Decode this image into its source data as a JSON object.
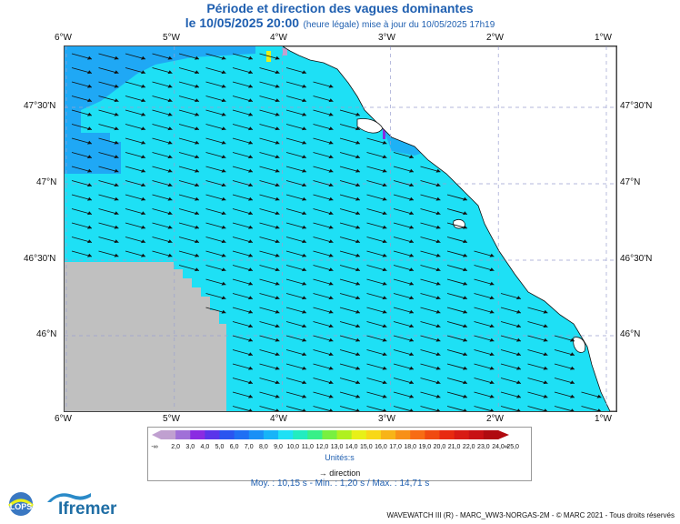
{
  "title": "Période et direction des vagues dominantes",
  "subtitle_date": "le 10/05/2025 20:00",
  "subtitle_note": "(heure légale) mise à jour du 10/05/2025 17h19",
  "longitude_ticks": [
    "6°W",
    "5°W",
    "4°W",
    "3°W",
    "2°W",
    "1°W"
  ],
  "latitude_ticks": [
    "47°30'N",
    "47°N",
    "46°30'N",
    "46°N"
  ],
  "legend": {
    "labels": [
      "-∞",
      "2,0",
      "3,0",
      "4,0",
      "5,0",
      "6,0",
      "7,0",
      "8,0",
      "9,0",
      "10,0",
      "11,0",
      "12,0",
      "13,0",
      "14,0",
      "15,0",
      "16,0",
      "17,0",
      "18,0",
      "19,0",
      "20,0",
      "21,0",
      "22,0",
      "23,0",
      "24,0",
      "25,0",
      "∞"
    ],
    "colors": [
      "#c0a0d0",
      "#a070d8",
      "#8a2be2",
      "#5a35ea",
      "#2a55f0",
      "#1f6ff4",
      "#1a90f6",
      "#17b4f8",
      "#1ee0f5",
      "#22ecc0",
      "#38f088",
      "#78f040",
      "#b0f020",
      "#e8f018",
      "#f8d818",
      "#f8b418",
      "#f89018",
      "#f86c14",
      "#f04a10",
      "#e82a10",
      "#d81a14",
      "#c81014",
      "#b00a10"
    ],
    "unit": "Unités:s",
    "direction_label": "direction"
  },
  "stats": "Moy. : 10,15 s   -   Min. : 1,20 s / Max. : 14,71 s",
  "credits": "WAVEWATCH III (R) - MARC_WW3-NORGAS-2M - © MARC 2021 - Tous droits réservés",
  "logos": {
    "lops": "LOPS",
    "ifremer": "Ifremer"
  },
  "colors": {
    "sea": "#1ee0f5",
    "sea_deep": "#1fa8f5",
    "land": "#ffffff",
    "nodata": "#c0c0c0",
    "title": "#1f5fb0",
    "grid": "#9aa0d0"
  }
}
